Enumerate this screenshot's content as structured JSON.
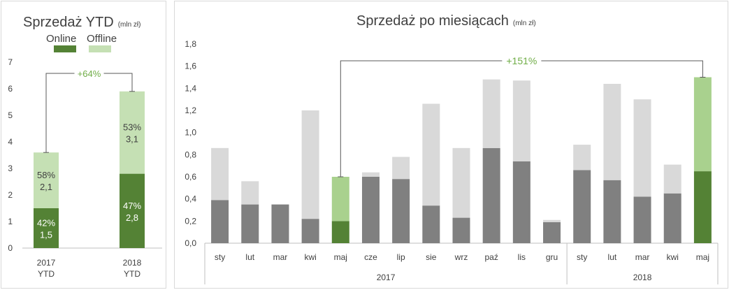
{
  "colors": {
    "online": "#548235",
    "offline": "#c5e0b4",
    "online_2017": "#808080",
    "offline_2017": "#d9d9d9",
    "highlight_online": "#548235",
    "highlight_offline": "#a9d18e",
    "growth_text": "#70ad47",
    "text": "#404040",
    "axis": "#bfbfbf",
    "bracket": "#595959"
  },
  "chart_data": [
    {
      "type": "bar",
      "stacked": true,
      "title": "Sprzedaż YTD",
      "title_unit": "(mln zł)",
      "legend": {
        "position": "top",
        "items": [
          "Online",
          "Offline"
        ]
      },
      "categories": [
        [
          "2017",
          "YTD"
        ],
        [
          "2018",
          "YTD"
        ]
      ],
      "series": [
        {
          "name": "Online",
          "values": [
            1.5,
            2.8
          ],
          "labels": [
            [
              "42%",
              "1,5"
            ],
            [
              "47%",
              "2,8"
            ]
          ]
        },
        {
          "name": "Offline",
          "values": [
            2.1,
            3.1
          ],
          "labels": [
            [
              "58%",
              "2,1"
            ],
            [
              "53%",
              "3,1"
            ]
          ]
        }
      ],
      "ylim": [
        0,
        7
      ],
      "yticks": [
        "0",
        "1",
        "2",
        "3",
        "4",
        "5",
        "6",
        "7"
      ],
      "annotation": {
        "text": "+64%",
        "from": 0,
        "to": 1
      }
    },
    {
      "type": "bar",
      "stacked": true,
      "title": "Sprzedaż po miesiącach",
      "title_unit": "(mln zł)",
      "categories": [
        "sty",
        "lut",
        "mar",
        "kwi",
        "maj",
        "cze",
        "lip",
        "sie",
        "wrz",
        "paź",
        "lis",
        "gru",
        "sty",
        "lut",
        "mar",
        "kwi",
        "maj"
      ],
      "groups": [
        {
          "label": "2017",
          "start": 0,
          "count": 12
        },
        {
          "label": "2018",
          "start": 12,
          "count": 5
        }
      ],
      "series": [
        {
          "values": [
            0.39,
            0.35,
            0.35,
            0.22,
            0.2,
            0.6,
            0.58,
            0.34,
            0.23,
            0.86,
            0.74,
            0.19,
            0.66,
            0.57,
            0.42,
            0.45,
            0.65
          ]
        },
        {
          "values": [
            0.47,
            0.21,
            0.0,
            0.98,
            0.4,
            0.04,
            0.2,
            0.92,
            0.63,
            0.62,
            0.73,
            0.02,
            0.23,
            0.87,
            0.88,
            0.26,
            0.85
          ]
        }
      ],
      "highlight": [
        4,
        16
      ],
      "ylim": [
        0,
        1.8
      ],
      "yticks": [
        "0,0",
        "0,2",
        "0,4",
        "0,6",
        "0,8",
        "1,0",
        "1,2",
        "1,4",
        "1,6",
        "1,8"
      ],
      "annotation": {
        "text": "+151%",
        "from": 4,
        "to": 16
      }
    }
  ]
}
